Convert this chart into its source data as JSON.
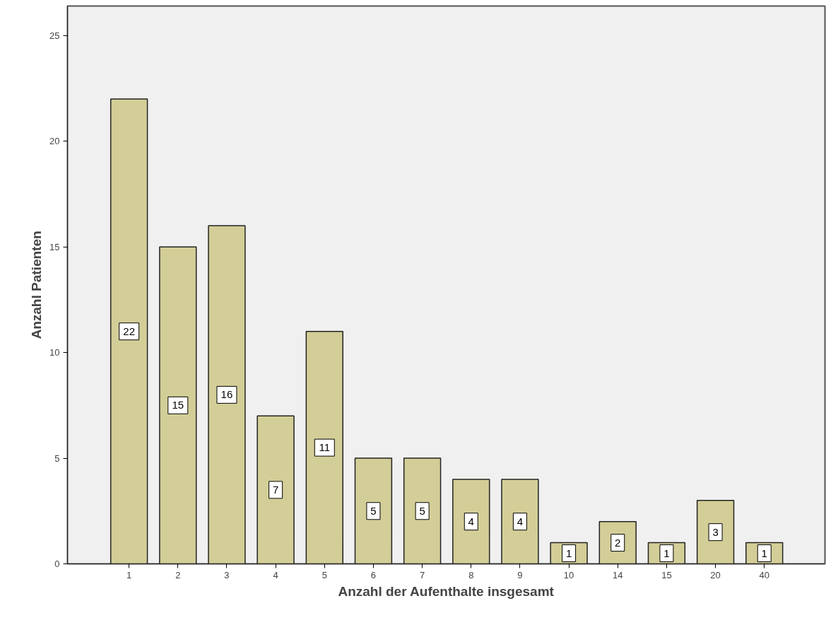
{
  "chart_data": {
    "type": "bar",
    "xlabel": "Anzahl der Aufenthalte insgesamt",
    "ylabel": "Anzahl Patienten",
    "categories": [
      "1",
      "2",
      "3",
      "4",
      "5",
      "6",
      "7",
      "8",
      "9",
      "10",
      "14",
      "15",
      "20",
      "40"
    ],
    "values": [
      22,
      15,
      16,
      7,
      11,
      5,
      5,
      4,
      4,
      1,
      2,
      1,
      3,
      1
    ],
    "color": "#d3ce97",
    "ylim": [
      0,
      26.4
    ],
    "yticks": [
      0,
      5,
      10,
      15,
      20,
      25
    ],
    "grid": false,
    "data_labels": true
  }
}
